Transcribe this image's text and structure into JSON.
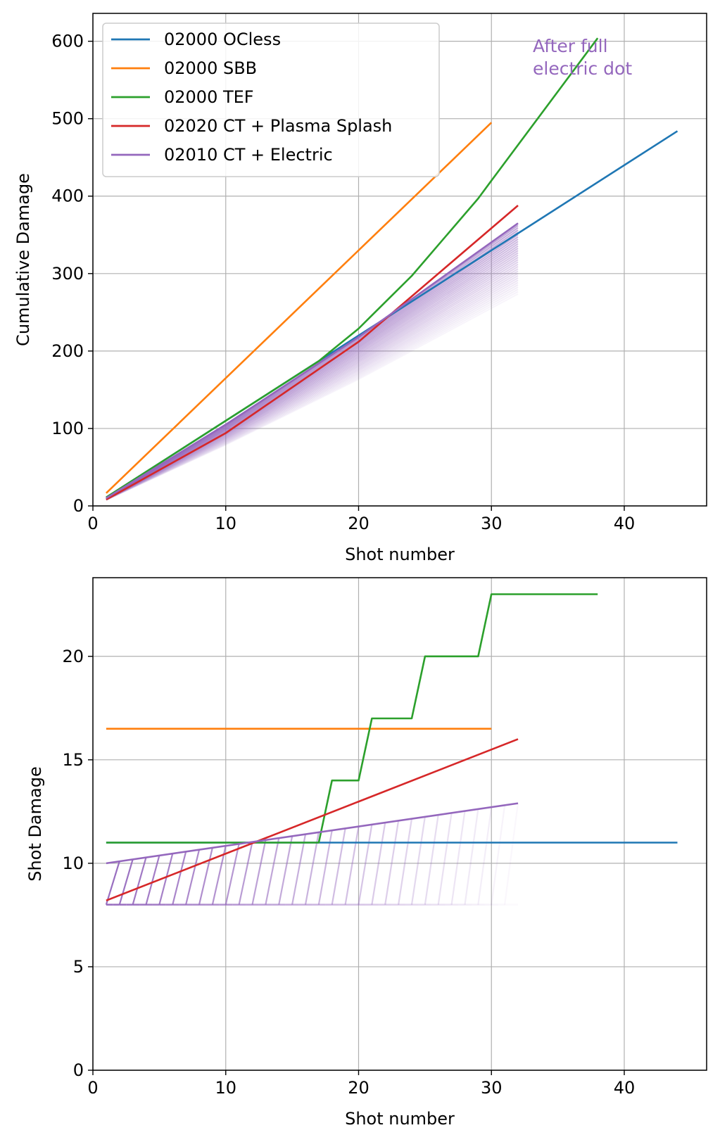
{
  "chart_data": [
    {
      "type": "line",
      "xlabel": "Shot number",
      "ylabel": "Cumulative Damage",
      "xlim": [
        0,
        46.2
      ],
      "ylim": [
        0,
        636
      ],
      "xticks": [
        0,
        10,
        20,
        30,
        40
      ],
      "yticks": [
        0,
        100,
        200,
        300,
        400,
        500,
        600
      ],
      "grid": true,
      "legend_position": "top-left",
      "annotation": {
        "line1": "After full",
        "line2": "electric dot",
        "color": "#9467bd"
      },
      "series": [
        {
          "name": "02000 OCless",
          "color": "#1f77b4",
          "x": [
            1,
            44
          ],
          "y": [
            11,
            484
          ]
        },
        {
          "name": "02000 SBB",
          "color": "#ff7f0e",
          "x": [
            1,
            30
          ],
          "y": [
            16.5,
            495
          ]
        },
        {
          "name": "02000 TEF",
          "color": "#2ca02c",
          "x": [
            1,
            17,
            18,
            20,
            21,
            24,
            25,
            29,
            30,
            38
          ],
          "y": [
            11,
            187,
            201,
            229,
            246,
            297,
            317,
            397,
            420,
            604
          ]
        },
        {
          "name": "02020 CT + Plasma Splash",
          "color": "#d62728",
          "x": [
            1,
            10,
            20,
            32
          ],
          "y": [
            8.2,
            94,
            212,
            388
          ]
        },
        {
          "name": "02010 CT + Electric",
          "color": "#9467bd",
          "x": [
            1,
            10,
            20,
            32
          ],
          "y": [
            10,
            105,
            218,
            365
          ]
        }
      ]
    },
    {
      "type": "line",
      "xlabel": "Shot number",
      "ylabel": "Shot Damage",
      "xlim": [
        0,
        46.2
      ],
      "ylim": [
        0,
        23.8
      ],
      "xticks": [
        0,
        10,
        20,
        30,
        40
      ],
      "yticks": [
        0,
        5,
        10,
        15,
        20
      ],
      "grid": true,
      "series": [
        {
          "name": "02000 OCless",
          "color": "#1f77b4",
          "x": [
            1,
            44
          ],
          "y": [
            11,
            11
          ]
        },
        {
          "name": "02000 SBB",
          "color": "#ff7f0e",
          "x": [
            1,
            30
          ],
          "y": [
            16.5,
            16.5
          ]
        },
        {
          "name": "02000 TEF",
          "color": "#2ca02c",
          "x": [
            1,
            17,
            18,
            20,
            21,
            24,
            25,
            29,
            30,
            38
          ],
          "y": [
            11,
            11,
            14,
            14,
            17,
            17,
            20,
            20,
            23,
            23
          ]
        },
        {
          "name": "02020 CT + Plasma Splash",
          "color": "#d62728",
          "x": [
            1,
            32
          ],
          "y": [
            8.2,
            16
          ]
        },
        {
          "name": "02010 CT + Electric",
          "color": "#9467bd",
          "x": [
            1,
            32
          ],
          "y": [
            10,
            12.9
          ],
          "baseline_y": 8
        }
      ]
    }
  ]
}
